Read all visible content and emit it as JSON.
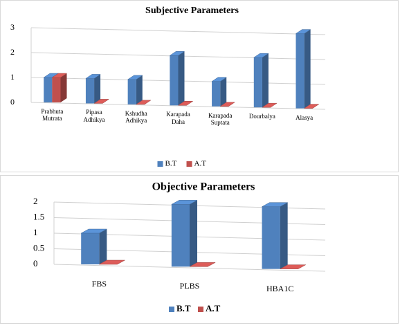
{
  "chart_data": [
    {
      "type": "bar",
      "title": "Subjective Parameters",
      "categories": [
        "Prabhuta Mutrata",
        "Pipasa Adhikya",
        "Kshudha Adhikya",
        "Karapada Daha",
        "Karapada Suptata",
        "Dourbalya",
        "Alasya"
      ],
      "series": [
        {
          "name": "B.T",
          "color": "#4f81bd",
          "values": [
            1,
            1,
            1,
            2,
            1,
            2,
            3
          ]
        },
        {
          "name": "A.T",
          "color": "#c0504d",
          "values": [
            1,
            0,
            0,
            0,
            0,
            0,
            0
          ]
        }
      ],
      "ylim": [
        0,
        3
      ],
      "yticks": [
        0,
        1,
        2,
        3
      ],
      "grid": true,
      "legend": "bottom"
    },
    {
      "type": "bar",
      "title": "Objective Parameters",
      "categories": [
        "FBS",
        "PLBS",
        "HBA1C"
      ],
      "series": [
        {
          "name": "B.T",
          "color": "#4f81bd",
          "values": [
            1,
            2,
            2
          ]
        },
        {
          "name": "A.T",
          "color": "#c0504d",
          "values": [
            0,
            0,
            0
          ]
        }
      ],
      "ylim": [
        0,
        2
      ],
      "yticks": [
        0,
        0.5,
        1,
        1.5,
        2
      ],
      "grid": true,
      "legend": "bottom"
    }
  ]
}
